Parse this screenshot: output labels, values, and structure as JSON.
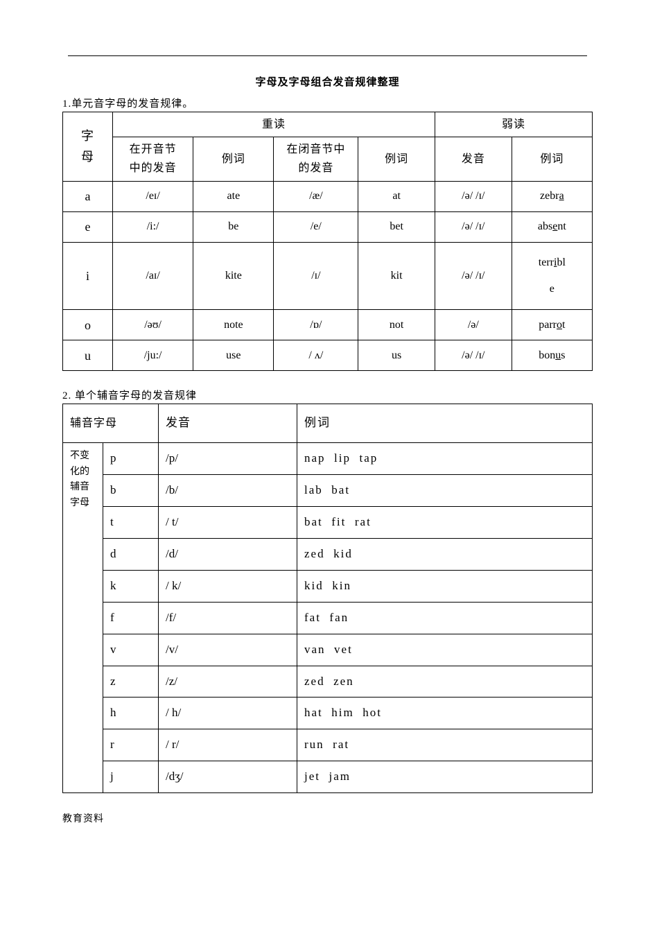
{
  "page_title": "字母及字母组合发音规律整理",
  "footer": "教育资料",
  "section1": {
    "heading": "1.单元音字母的发音规律。",
    "group_headers": {
      "stressed": "重读",
      "weak": "弱读"
    },
    "col_headers": {
      "letter": "字\n母",
      "open": "在开音节\n中的发音",
      "open_ex": "例词",
      "closed": "在闭音节中\n的发音",
      "closed_ex": "例词",
      "weak": "发音",
      "weak_ex": "例词"
    },
    "rows": [
      {
        "letter": "a",
        "open": "/eɪ/",
        "open_ex": "ate",
        "closed": "/æ/",
        "closed_ex": "at",
        "weak": "/ə/ /ɪ/",
        "weak_ex_pre": "zebr",
        "weak_ex_u": "a",
        "weak_ex_post": ""
      },
      {
        "letter": "e",
        "open": "/i:/",
        "open_ex": "be",
        "closed": "/e/",
        "closed_ex": "bet",
        "weak": "/ə/ /ɪ/",
        "weak_ex_pre": "abs",
        "weak_ex_u": "e",
        "weak_ex_post": "nt"
      },
      {
        "letter": "i",
        "open": "/aɪ/",
        "open_ex": "kite",
        "closed": "/ɪ/",
        "closed_ex": "kit",
        "weak": "/ə/ /ɪ/",
        "weak_ex_pre": "terr",
        "weak_ex_u": "i",
        "weak_ex_post": "bl\ne"
      },
      {
        "letter": "o",
        "open": "/əʊ/",
        "open_ex": "note",
        "closed": "/ɒ/",
        "closed_ex": "not",
        "weak": "/ə/",
        "weak_ex_pre": "parr",
        "weak_ex_u": "o",
        "weak_ex_post": "t"
      },
      {
        "letter": "u",
        "open": "/ju:/",
        "open_ex": "use",
        "closed": "/ ʌ/",
        "closed_ex": "us",
        "weak": "/ə/ /ɪ/",
        "weak_ex_pre": "bon",
        "weak_ex_u": "u",
        "weak_ex_post": "s"
      }
    ]
  },
  "section2": {
    "heading": "2. 单个辅音字母的发音规律",
    "col_headers": {
      "group": "辅音字母",
      "sound": "发音",
      "example": "例词"
    },
    "group_label": "不变\n化的\n辅音\n字母",
    "rows": [
      {
        "letter": "p",
        "sound": "/p/",
        "ex": "nap  lip  tap"
      },
      {
        "letter": "b",
        "sound": "/b/",
        "ex": "lab  bat"
      },
      {
        "letter": "t",
        "sound": "/ t/",
        "ex": "bat  fit  rat"
      },
      {
        "letter": "d",
        "sound": "/d/",
        "ex": "zed  kid"
      },
      {
        "letter": "k",
        "sound": "/ k/",
        "ex": "kid  kin"
      },
      {
        "letter": "f",
        "sound": "/f/",
        "ex": "fat  fan"
      },
      {
        "letter": "v",
        "sound": "/v/",
        "ex": "van  vet"
      },
      {
        "letter": "z",
        "sound": "/z/",
        "ex": "zed  zen"
      },
      {
        "letter": "h",
        "sound": "/ h/",
        "ex": "hat  him  hot"
      },
      {
        "letter": "r",
        "sound": "/ r/",
        "ex": "run  rat"
      },
      {
        "letter": "j",
        "sound": "/dʒ/",
        "ex": "jet   jam"
      }
    ]
  }
}
